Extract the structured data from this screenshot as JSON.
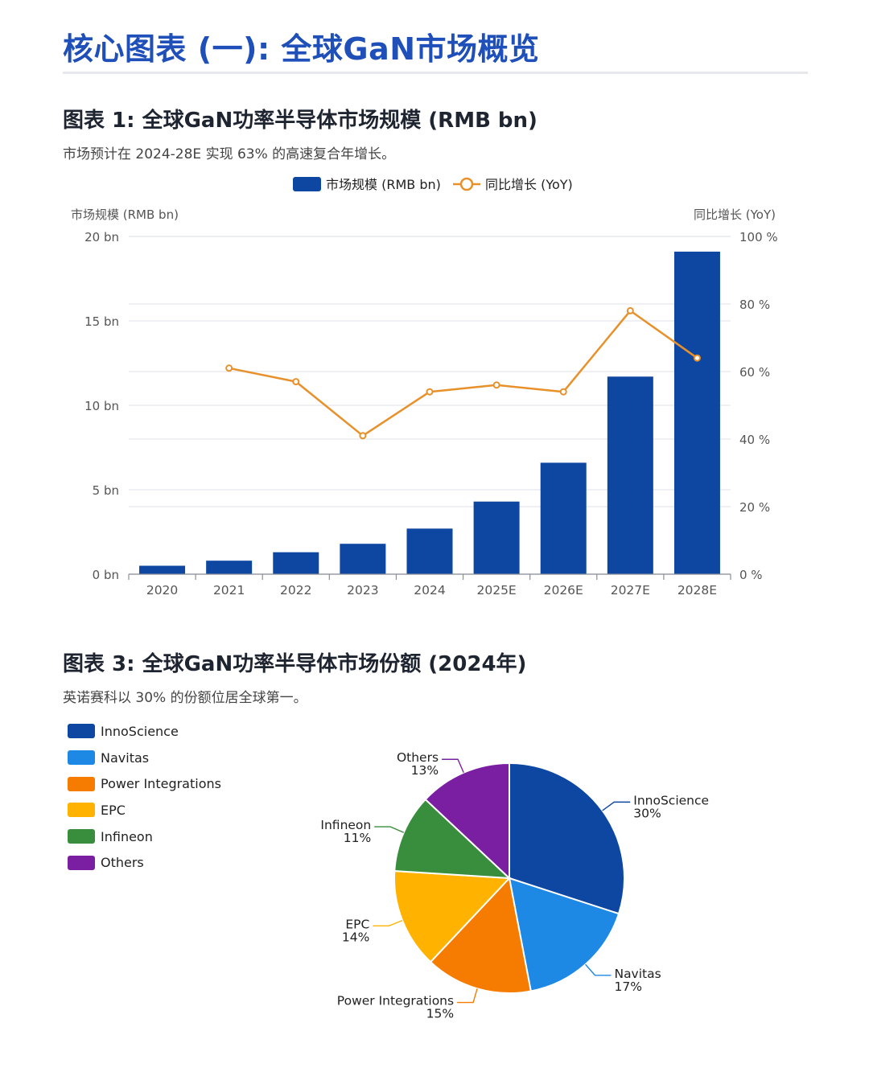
{
  "page_title": "核心图表 (一): 全球GaN市场概览",
  "colors": {
    "title": "#1f4fb8",
    "bar": "#0e47a1",
    "line": "#e8912a",
    "grid": "#e3e7ee"
  },
  "chart1": {
    "title": "图表 1: 全球GaN功率半导体市场规模 (RMB bn)",
    "subtitle": "市场预计在 2024-28E 实现 63% 的高速复合年增长。",
    "legend": {
      "bar_label": "市场规模 (RMB bn)",
      "line_label": "同比增长 (YoY)"
    },
    "left_axis_title": "市场规模 (RMB bn)",
    "right_axis_title": "同比增长 (YoY)"
  },
  "chart2": {
    "title": "图表 3: 全球GaN功率半导体市场份额 (2024年)",
    "subtitle": "英诺赛科以 30% 的份额位居全球第一。"
  },
  "chart_data": [
    {
      "type": "bar",
      "categories": [
        "2020",
        "2021",
        "2022",
        "2023",
        "2024",
        "2025E",
        "2026E",
        "2027E",
        "2028E"
      ],
      "series": [
        {
          "name": "市场规模 (RMB bn)",
          "type": "bar",
          "axis": "left",
          "values": [
            0.5,
            0.8,
            1.3,
            1.8,
            2.7,
            4.3,
            6.6,
            11.7,
            19.1
          ]
        },
        {
          "name": "同比增长 (YoY)",
          "type": "line",
          "axis": "right",
          "values": [
            null,
            61,
            57,
            41,
            54,
            56,
            54,
            78,
            64
          ]
        }
      ],
      "left_axis": {
        "min": 0,
        "max": 20,
        "ticks": [
          "0 bn",
          "5 bn",
          "10 bn",
          "15 bn",
          "20 bn"
        ]
      },
      "right_axis": {
        "min": 0,
        "max": 100,
        "ticks": [
          "0 %",
          "20 %",
          "40 %",
          "60 %",
          "80 %",
          "100 %"
        ]
      },
      "legend_position": "top-center",
      "grid": true
    },
    {
      "type": "pie",
      "slices": [
        {
          "label": "InnoScience",
          "value": 30,
          "pct": "30%",
          "color": "#0d47a1"
        },
        {
          "label": "Navitas",
          "value": 17,
          "pct": "17%",
          "color": "#1e88e5"
        },
        {
          "label": "Power Integrations",
          "value": 15,
          "pct": "15%",
          "color": "#f57c00"
        },
        {
          "label": "EPC",
          "value": 14,
          "pct": "14%",
          "color": "#ffb300"
        },
        {
          "label": "Infineon",
          "value": 11,
          "pct": "11%",
          "color": "#388e3c"
        },
        {
          "label": "Others",
          "value": 13,
          "pct": "13%",
          "color": "#7b1fa2"
        }
      ],
      "legend_position": "left"
    }
  ]
}
